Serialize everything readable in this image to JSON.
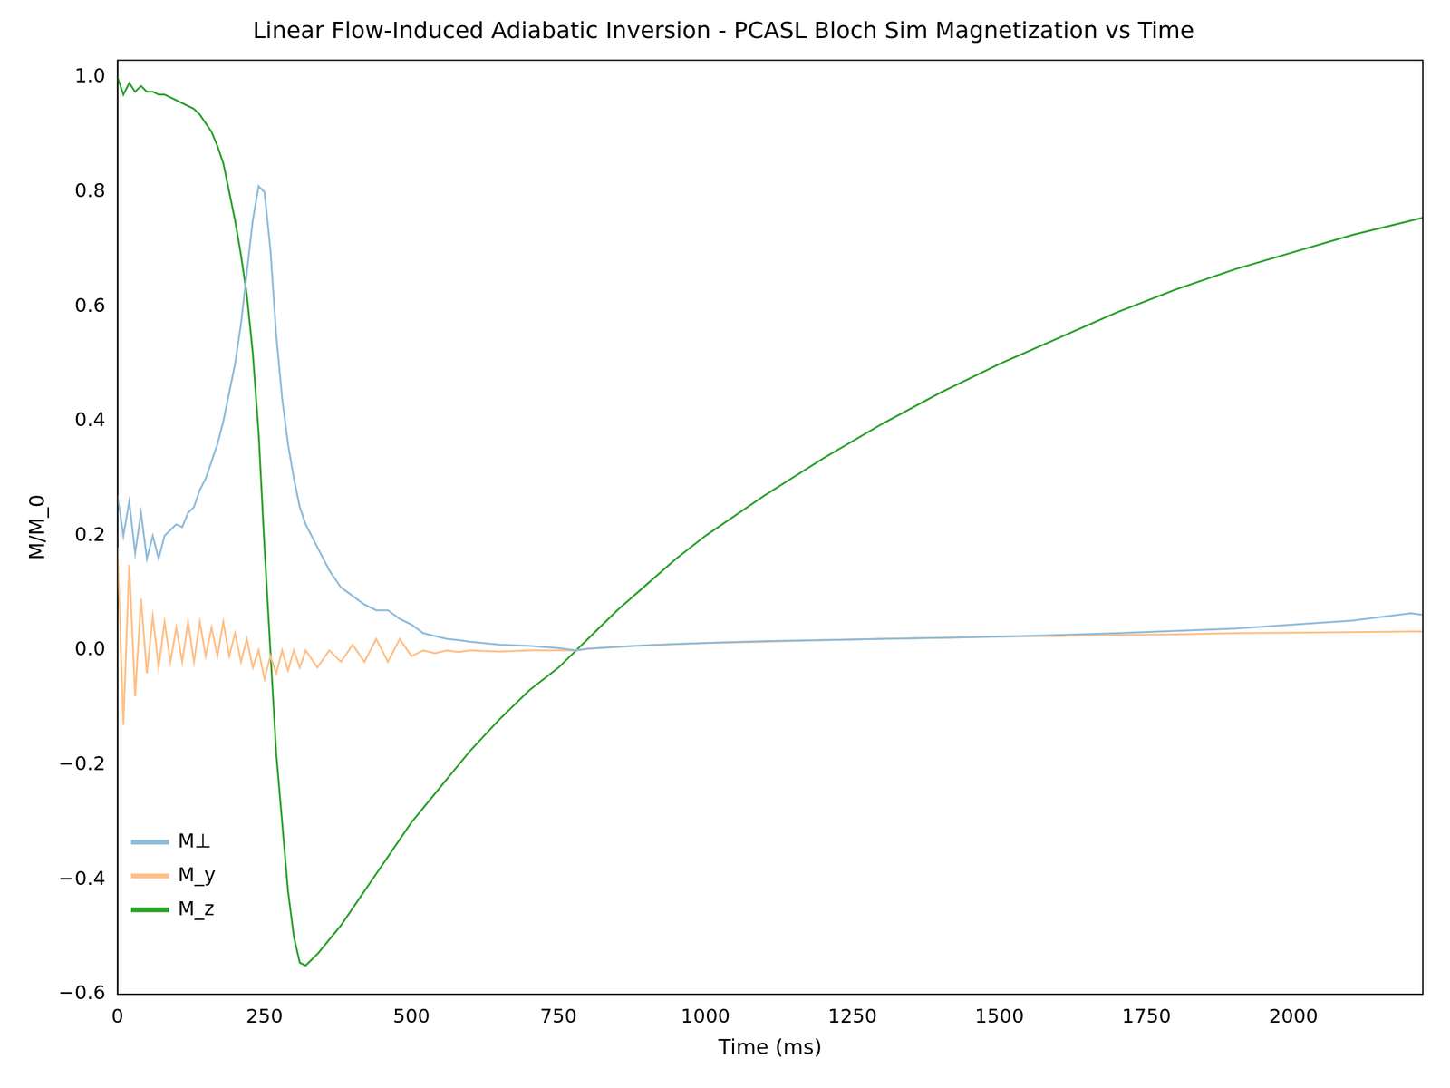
{
  "chart_data": {
    "type": "line",
    "title": "Linear Flow-Induced Adiabatic Inversion - PCASL Bloch Sim Magnetization vs Time",
    "x_label": "Time (ms)",
    "y_label": "M/M_0",
    "x": [
      0,
      10,
      20,
      30,
      40,
      50,
      60,
      70,
      80,
      90,
      100,
      110,
      120,
      130,
      140,
      150,
      160,
      170,
      180,
      190,
      200,
      210,
      220,
      230,
      240,
      250,
      260,
      270,
      280,
      290,
      300,
      310,
      320,
      340,
      360,
      380,
      400,
      420,
      440,
      460,
      480,
      500,
      520,
      540,
      560,
      580,
      600,
      650,
      700,
      750,
      780,
      800,
      850,
      900,
      950,
      1000,
      1100,
      1200,
      1300,
      1400,
      1500,
      1600,
      1700,
      1800,
      1900,
      2000,
      2100,
      2200,
      2220
    ],
    "series": [
      {
        "name": "M⊥",
        "color": "#8fbbd9",
        "values": [
          0.27,
          0.2,
          0.26,
          0.17,
          0.24,
          0.16,
          0.2,
          0.16,
          0.2,
          0.21,
          0.22,
          0.215,
          0.24,
          0.25,
          0.28,
          0.3,
          0.33,
          0.36,
          0.4,
          0.45,
          0.5,
          0.57,
          0.66,
          0.75,
          0.81,
          0.8,
          0.7,
          0.55,
          0.44,
          0.36,
          0.3,
          0.25,
          0.22,
          0.18,
          0.14,
          0.11,
          0.095,
          0.08,
          0.07,
          0.07,
          0.055,
          0.045,
          0.03,
          0.025,
          0.02,
          0.018,
          0.015,
          0.01,
          0.008,
          0.004,
          0.0,
          0.003,
          0.006,
          0.009,
          0.011,
          0.013,
          0.016,
          0.018,
          0.02,
          0.022,
          0.024,
          0.027,
          0.03,
          0.034,
          0.038,
          0.045,
          0.052,
          0.065,
          0.062
        ]
      },
      {
        "name": "M_y",
        "color": "#ffbf86",
        "values": [
          0.18,
          -0.13,
          0.15,
          -0.08,
          0.09,
          -0.04,
          0.06,
          -0.03,
          0.05,
          -0.02,
          0.04,
          -0.02,
          0.05,
          -0.02,
          0.05,
          -0.01,
          0.04,
          -0.01,
          0.05,
          -0.01,
          0.03,
          -0.02,
          0.02,
          -0.03,
          0.0,
          -0.05,
          -0.01,
          -0.04,
          0.0,
          -0.035,
          0.0,
          -0.03,
          0.0,
          -0.03,
          0.0,
          -0.02,
          0.01,
          -0.02,
          0.02,
          -0.02,
          0.02,
          -0.01,
          0.0,
          -0.005,
          0.0,
          -0.003,
          0.0,
          -0.002,
          0.0,
          0.0,
          0.0,
          0.003,
          0.006,
          0.009,
          0.011,
          0.013,
          0.015,
          0.018,
          0.02,
          0.022,
          0.024,
          0.025,
          0.027,
          0.028,
          0.03,
          0.031,
          0.032,
          0.033,
          0.033
        ]
      },
      {
        "name": "M_z",
        "color": "#2ca02c",
        "values": [
          1.0,
          0.97,
          0.99,
          0.975,
          0.985,
          0.975,
          0.975,
          0.97,
          0.97,
          0.965,
          0.96,
          0.955,
          0.95,
          0.945,
          0.935,
          0.92,
          0.905,
          0.88,
          0.85,
          0.8,
          0.75,
          0.69,
          0.62,
          0.52,
          0.38,
          0.18,
          0.0,
          -0.18,
          -0.3,
          -0.42,
          -0.5,
          -0.545,
          -0.55,
          -0.53,
          -0.505,
          -0.48,
          -0.45,
          -0.42,
          -0.39,
          -0.36,
          -0.33,
          -0.3,
          -0.275,
          -0.25,
          -0.225,
          -0.2,
          -0.175,
          -0.12,
          -0.07,
          -0.03,
          0.0,
          0.02,
          0.07,
          0.115,
          0.16,
          0.2,
          0.27,
          0.335,
          0.395,
          0.45,
          0.5,
          0.545,
          0.59,
          0.63,
          0.665,
          0.695,
          0.725,
          0.75,
          0.755
        ]
      }
    ],
    "xlim": [
      0,
      2220
    ],
    "xticks": [
      0,
      250,
      500,
      750,
      1000,
      1250,
      1500,
      1750,
      2000
    ],
    "ylim": [
      -0.6,
      1.03
    ],
    "yticks": [
      {
        "value": -0.6,
        "label": "−0.6"
      },
      {
        "value": -0.4,
        "label": "−0.4"
      },
      {
        "value": -0.2,
        "label": "−0.2"
      },
      {
        "value": 0,
        "label": "0.0"
      },
      {
        "value": 0.2,
        "label": "0.2"
      },
      {
        "value": 0.4,
        "label": "0.4"
      },
      {
        "value": 0.6,
        "label": "0.6"
      },
      {
        "value": 0.8,
        "label": "0.8"
      },
      {
        "value": 1.0,
        "label": "1.0"
      }
    ],
    "grid": false,
    "legend": "upper right"
  }
}
